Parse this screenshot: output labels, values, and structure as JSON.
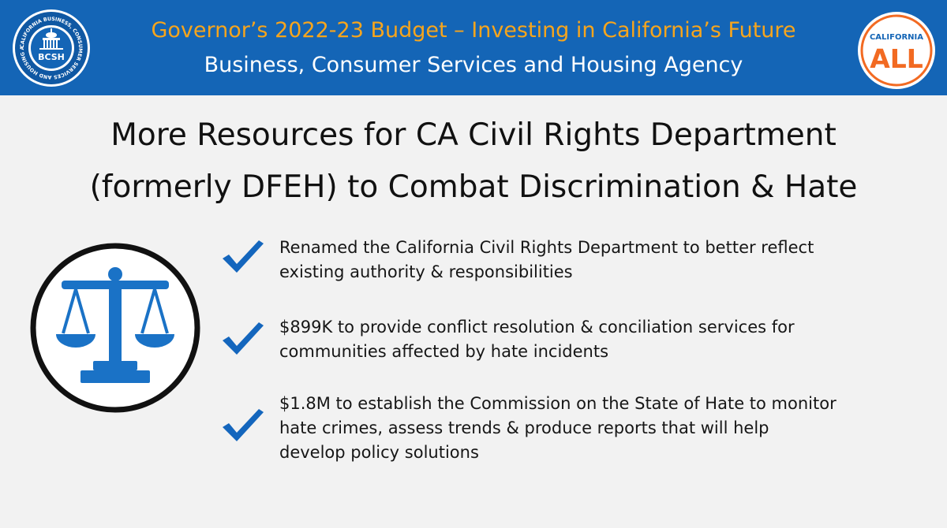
{
  "header": {
    "title": "Governor’s 2022-23 Budget – Investing in California’s Future",
    "subtitle": "Business, Consumer Services and Housing Agency",
    "seal": {
      "ring_text": "CALIFORNIA BUSINESS, CONSUMER SERVICES AND HOUSING AGENCY",
      "abbreviation": "BCSH"
    },
    "badge": {
      "top_text": "CALIFORNIA",
      "main_text": "ALL"
    }
  },
  "slide": {
    "title_line1": "More Resources for CA Civil Rights Department",
    "title_line2": "(formerly DFEH) to Combat Discrimination & Hate",
    "bullets": [
      {
        "lines": [
          "Renamed the California Civil Rights Department to better reflect",
          "existing authority & responsibilities"
        ]
      },
      {
        "lines": [
          "$899K to provide conflict resolution & conciliation services for",
          "communities affected by hate incidents"
        ]
      },
      {
        "lines": [
          "$1.8M to establish the Commission on the State of Hate to monitor",
          "hate crimes, assess trends & produce reports that will help",
          "develop policy solutions"
        ]
      }
    ]
  },
  "icons": {
    "seal": "bcsh-seal-icon",
    "badge": "california-for-all-icon",
    "scales": "scales-of-justice-icon",
    "check": "checkmark-icon"
  },
  "colors": {
    "header_bg": "#1465b6",
    "header_title": "#f7a51c",
    "header_subtitle": "#ffffff",
    "slide_bg": "#f2f2f2",
    "icon_blue": "#1a72c6",
    "check_blue": "#1466bd",
    "badge_orange": "#f26a22"
  }
}
